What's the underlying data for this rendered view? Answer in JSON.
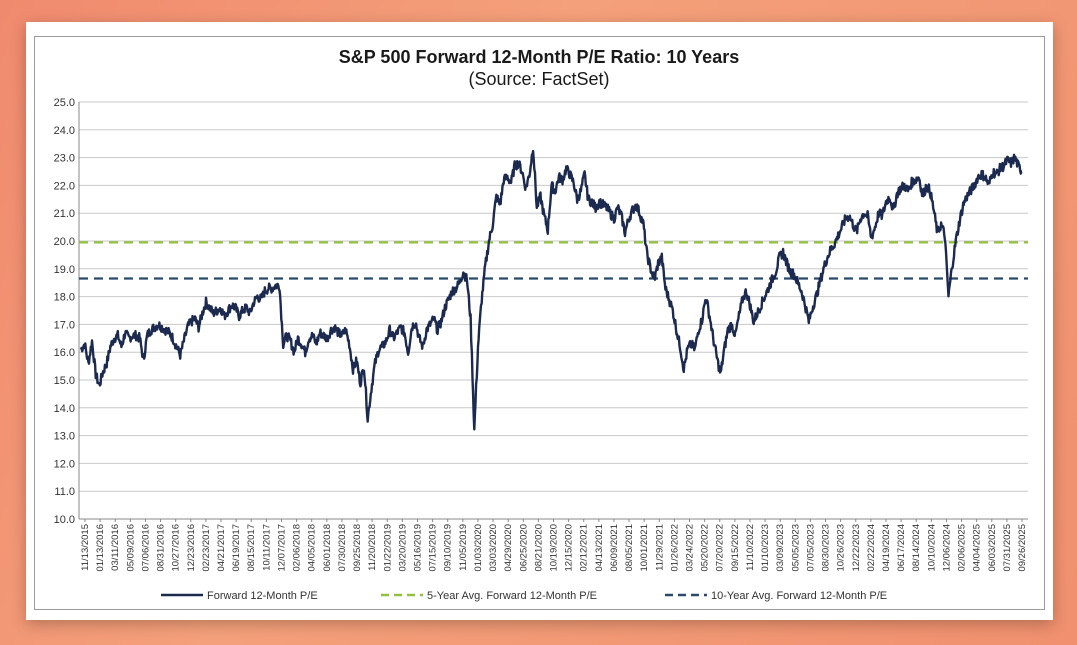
{
  "chart_data": {
    "type": "line",
    "title": "S&P 500 Forward 12-Month P/E Ratio: 10 Years",
    "subtitle": "(Source: FactSet)",
    "ylim": [
      10.0,
      25.0
    ],
    "yticks": [
      "10.0",
      "11.0",
      "12.0",
      "13.0",
      "14.0",
      "15.0",
      "16.0",
      "17.0",
      "18.0",
      "19.0",
      "20.0",
      "21.0",
      "22.0",
      "23.0",
      "24.0",
      "25.0"
    ],
    "xticks": [
      "11/13/2015",
      "01/13/2016",
      "03/11/2016",
      "05/09/2016",
      "07/06/2016",
      "08/31/2016",
      "10/27/2016",
      "12/23/2016",
      "02/23/2017",
      "04/21/2017",
      "06/19/2017",
      "08/15/2017",
      "10/11/2017",
      "12/07/2017",
      "02/06/2018",
      "04/05/2018",
      "06/01/2018",
      "07/30/2018",
      "09/25/2018",
      "11/20/2018",
      "01/22/2019",
      "03/20/2019",
      "05/16/2019",
      "07/15/2019",
      "09/10/2019",
      "11/05/2019",
      "01/03/2020",
      "03/03/2020",
      "04/29/2020",
      "06/25/2020",
      "08/21/2020",
      "10/19/2020",
      "12/15/2020",
      "02/12/2021",
      "04/13/2021",
      "06/09/2021",
      "08/05/2021",
      "10/01/2021",
      "11/29/2021",
      "01/26/2022",
      "03/24/2022",
      "05/20/2022",
      "07/20/2022",
      "09/15/2022",
      "11/10/2022",
      "01/10/2023",
      "03/09/2023",
      "05/05/2023",
      "07/05/2023",
      "08/30/2023",
      "10/26/2023",
      "12/22/2023",
      "02/22/2024",
      "04/19/2024",
      "06/17/2024",
      "08/14/2024",
      "10/10/2024",
      "12/06/2024",
      "02/06/2025",
      "04/04/2025",
      "06/03/2025",
      "07/31/2025",
      "09/26/2025"
    ],
    "series": [
      {
        "name": "Forward 12-Month P/E",
        "color": "#1b2a4e",
        "values": [
          16.1,
          16.3,
          15.6,
          16.4,
          15.2,
          14.8,
          15.3,
          15.6,
          16.2,
          16.5,
          16.6,
          16.2,
          16.7,
          16.5,
          16.6,
          16.6,
          16.5,
          15.7,
          16.6,
          16.8,
          16.9,
          17.0,
          16.9,
          16.8,
          16.7,
          16.5,
          16.2,
          15.9,
          16.4,
          16.9,
          17.1,
          17.2,
          16.9,
          17.4,
          17.8,
          17.6,
          17.4,
          17.5,
          17.6,
          17.3,
          17.5,
          17.7,
          17.6,
          17.3,
          17.5,
          17.6,
          17.4,
          17.8,
          18.0,
          17.9,
          18.2,
          18.3,
          18.3,
          18.4,
          18.4,
          16.3,
          16.6,
          16.4,
          16.0,
          16.5,
          16.3,
          16.0,
          16.5,
          16.6,
          16.3,
          16.7,
          16.6,
          16.5,
          16.8,
          16.9,
          16.7,
          16.6,
          16.8,
          16.3,
          15.4,
          15.7,
          14.9,
          15.5,
          13.6,
          14.7,
          15.6,
          16.1,
          16.2,
          16.4,
          16.8,
          16.5,
          16.7,
          16.9,
          16.7,
          16.0,
          16.9,
          17.1,
          16.5,
          16.2,
          16.8,
          17.0,
          17.2,
          16.8,
          17.1,
          17.6,
          17.9,
          18.2,
          18.3,
          18.5,
          18.9,
          18.6,
          17.2,
          13.2,
          16.2,
          17.9,
          19.1,
          20.0,
          20.6,
          21.6,
          21.3,
          22.2,
          22.3,
          22.1,
          22.7,
          22.8,
          22.5,
          21.9,
          22.4,
          23.4,
          21.2,
          21.6,
          20.9,
          20.4,
          22.0,
          21.8,
          22.3,
          22.2,
          22.6,
          22.4,
          22.1,
          21.5,
          21.8,
          22.4,
          21.5,
          21.4,
          21.2,
          21.4,
          21.3,
          21.2,
          21.0,
          20.8,
          21.2,
          20.9,
          20.3,
          20.8,
          21.1,
          21.3,
          21.0,
          20.6,
          19.5,
          19.0,
          18.6,
          19.2,
          19.4,
          18.3,
          17.9,
          17.5,
          16.8,
          16.2,
          15.4,
          16.1,
          16.3,
          16.1,
          16.8,
          17.2,
          18.0,
          17.3,
          16.5,
          15.8,
          15.2,
          16.1,
          16.8,
          17.0,
          16.6,
          17.3,
          17.9,
          18.2,
          17.7,
          17.1,
          17.4,
          17.7,
          18.0,
          18.3,
          18.6,
          18.9,
          19.4,
          19.6,
          19.2,
          18.9,
          18.8,
          18.5,
          18.2,
          17.7,
          17.1,
          17.6,
          18.0,
          18.5,
          19.0,
          19.4,
          19.7,
          19.9,
          20.2,
          20.5,
          20.8,
          20.9,
          20.6,
          20.3,
          20.8,
          21.0,
          20.9,
          20.1,
          20.5,
          21.0,
          20.9,
          21.4,
          21.6,
          21.1,
          21.7,
          21.9,
          22.0,
          21.8,
          22.1,
          22.2,
          22.3,
          21.6,
          22.0,
          21.8,
          21.1,
          20.3,
          20.6,
          20.2,
          18.0,
          19.1,
          20.0,
          20.7,
          21.3,
          21.6,
          21.8,
          22.0,
          22.3,
          22.4,
          22.3,
          22.0,
          22.5,
          22.4,
          22.6,
          22.7,
          22.9,
          22.8,
          23.0,
          22.7,
          22.5
        ]
      },
      {
        "name": "5-Year Avg. Forward 12-Month P/E",
        "color": "#92c13e",
        "values": [
          19.95
        ]
      },
      {
        "name": "10-Year Avg. Forward 12-Month P/E",
        "color": "#2b4a6b",
        "values": [
          18.65
        ]
      }
    ],
    "grid": true,
    "legend_position": "bottom"
  }
}
